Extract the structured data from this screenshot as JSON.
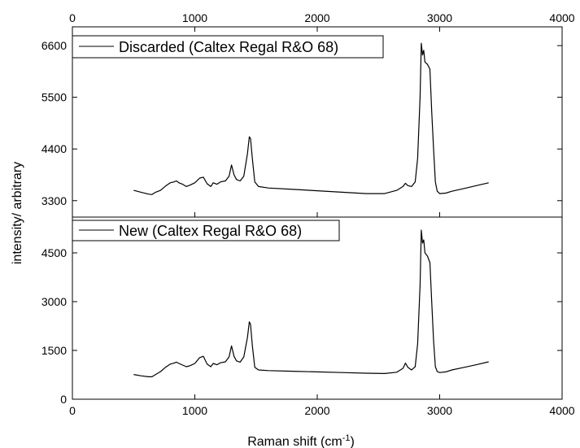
{
  "chart_data": {
    "type": "line",
    "layout": "stacked-panels",
    "shared_xlabel": "Raman shift (cm",
    "shared_xlabel_sup": "-1",
    "shared_xlabel_close": ")",
    "shared_ylabel": "intensity/ arbitrary",
    "xlim": [
      0,
      4000
    ],
    "xticks": [
      0,
      1000,
      2000,
      3000,
      4000
    ],
    "line_color": "#000000",
    "grid": false,
    "panels": [
      {
        "legend": "Discarded (Caltex Regal R&O 68)",
        "legend_position": "top-left",
        "ylim": [
          2950,
          7000
        ],
        "yticks": [
          3300,
          4400,
          5500,
          6600
        ],
        "series": {
          "name": "Discarded (Caltex Regal R&O 68)",
          "x": [
            500,
            560,
            620,
            650,
            680,
            720,
            760,
            800,
            830,
            850,
            870,
            900,
            930,
            960,
            1000,
            1040,
            1070,
            1100,
            1130,
            1150,
            1180,
            1210,
            1250,
            1280,
            1300,
            1320,
            1340,
            1370,
            1400,
            1430,
            1445,
            1455,
            1470,
            1490,
            1520,
            1600,
            1800,
            2000,
            2200,
            2400,
            2550,
            2650,
            2700,
            2720,
            2740,
            2770,
            2800,
            2820,
            2840,
            2850,
            2860,
            2870,
            2880,
            2900,
            2920,
            2935,
            2950,
            2965,
            2980,
            3000,
            3050,
            3100,
            3200,
            3300,
            3400
          ],
          "y": [
            3520,
            3480,
            3440,
            3430,
            3480,
            3520,
            3610,
            3680,
            3700,
            3720,
            3680,
            3650,
            3600,
            3630,
            3680,
            3780,
            3800,
            3660,
            3600,
            3680,
            3650,
            3700,
            3720,
            3820,
            4060,
            3850,
            3750,
            3720,
            3820,
            4300,
            4660,
            4620,
            4200,
            3700,
            3600,
            3570,
            3540,
            3510,
            3480,
            3450,
            3450,
            3520,
            3600,
            3670,
            3620,
            3600,
            3700,
            4200,
            5500,
            6650,
            6400,
            6500,
            6250,
            6200,
            6100,
            5200,
            4400,
            3700,
            3500,
            3450,
            3460,
            3500,
            3560,
            3620,
            3680
          ]
        }
      },
      {
        "legend": "New (Caltex Regal R&O 68)",
        "legend_position": "top-left",
        "ylim": [
          0,
          5600
        ],
        "yticks": [
          0,
          1500,
          3000,
          4500
        ],
        "series": {
          "name": "New (Caltex Regal R&O 68)",
          "x": [
            500,
            560,
            620,
            650,
            680,
            720,
            760,
            800,
            830,
            850,
            870,
            900,
            930,
            960,
            1000,
            1040,
            1070,
            1100,
            1130,
            1150,
            1180,
            1210,
            1250,
            1280,
            1300,
            1320,
            1340,
            1370,
            1400,
            1430,
            1445,
            1455,
            1470,
            1490,
            1520,
            1600,
            1800,
            2000,
            2200,
            2400,
            2550,
            2650,
            2700,
            2720,
            2740,
            2770,
            2800,
            2820,
            2840,
            2850,
            2860,
            2870,
            2880,
            2900,
            2920,
            2935,
            2950,
            2965,
            2980,
            3000,
            3050,
            3100,
            3200,
            3300,
            3400
          ],
          "y": [
            760,
            720,
            690,
            690,
            760,
            850,
            980,
            1080,
            1110,
            1140,
            1100,
            1050,
            1000,
            1030,
            1100,
            1280,
            1320,
            1080,
            1000,
            1100,
            1060,
            1120,
            1150,
            1300,
            1640,
            1320,
            1180,
            1140,
            1300,
            1900,
            2380,
            2300,
            1650,
            980,
            900,
            880,
            860,
            840,
            820,
            800,
            790,
            830,
            950,
            1110,
            980,
            900,
            1000,
            1700,
            3500,
            5200,
            4800,
            4900,
            4500,
            4400,
            4200,
            3000,
            1800,
            1000,
            850,
            820,
            840,
            900,
            980,
            1060,
            1150
          ]
        }
      }
    ]
  }
}
